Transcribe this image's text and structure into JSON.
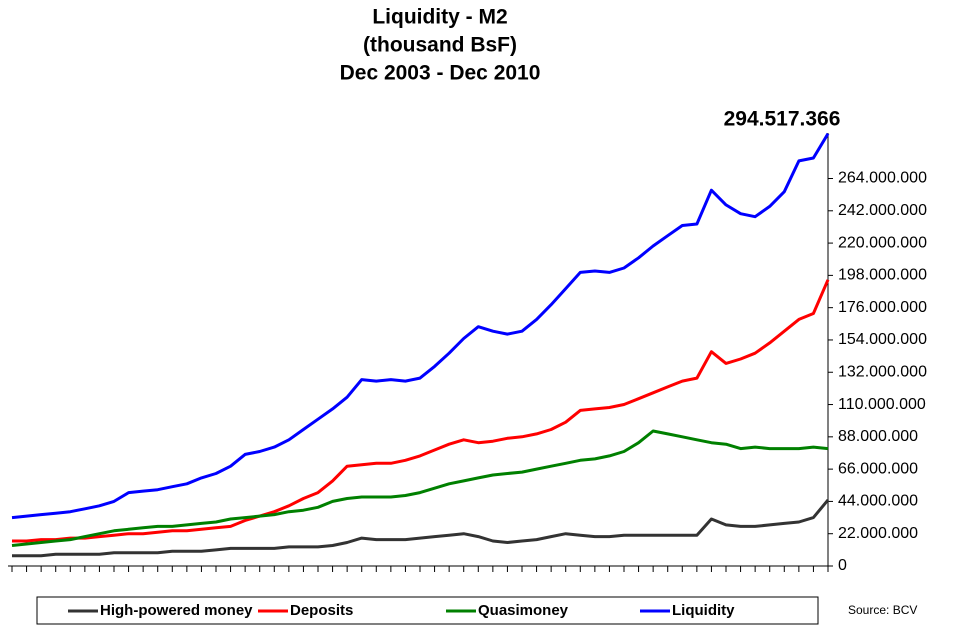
{
  "chart_data": {
    "type": "line",
    "title": [
      "Liquidity - M2",
      "(thousand BsF)",
      "Dec 2003 - Dec 2010"
    ],
    "annotation": "294.517.366",
    "source": "Source: BCV",
    "legend": "bottom",
    "categories": [
      null,
      null,
      null,
      null,
      null,
      null,
      null,
      null,
      null,
      null,
      null,
      null,
      null,
      null,
      null,
      null,
      null,
      null,
      null,
      null,
      null,
      null,
      null,
      null,
      null,
      null,
      null,
      null,
      null,
      null,
      null,
      null,
      null,
      null,
      null,
      null,
      null,
      null,
      null,
      null,
      null,
      null,
      null,
      null,
      null,
      null,
      null,
      null,
      null,
      null,
      null,
      null,
      null,
      null,
      null,
      null,
      null
    ],
    "ylim": [
      0,
      295000000
    ],
    "yticks": [
      0,
      {
        "value": 22000000,
        "label": "22.000.000"
      },
      {
        "value": 44000000,
        "label": "44.000.000"
      },
      {
        "value": 66000000,
        "label": "66.000.000"
      },
      {
        "value": 88000000,
        "label": "88.000.000"
      },
      {
        "value": 110000000,
        "label": "110.000.000"
      },
      {
        "value": 132000000,
        "label": "132.000.000"
      },
      {
        "value": 154000000,
        "label": "154.000.000"
      },
      {
        "value": 176000000,
        "label": "176.000.000"
      },
      {
        "value": 198000000,
        "label": "198.000.000"
      },
      {
        "value": 220000000,
        "label": "220.000.000"
      },
      {
        "value": 242000000,
        "label": "242.000.000"
      },
      {
        "value": 264000000,
        "label": "264.000.000"
      }
    ],
    "series": [
      {
        "name": "High-powered money",
        "color": "#333333",
        "values": [
          7000000,
          7000000,
          7000000,
          8000000,
          8000000,
          8000000,
          8000000,
          9000000,
          9000000,
          9000000,
          9000000,
          10000000,
          10000000,
          10000000,
          11000000,
          12000000,
          12000000,
          12000000,
          12000000,
          13000000,
          13000000,
          13000000,
          14000000,
          16000000,
          19000000,
          18000000,
          18000000,
          18000000,
          19000000,
          20000000,
          21000000,
          22000000,
          20000000,
          17000000,
          16000000,
          17000000,
          18000000,
          20000000,
          22000000,
          21000000,
          20000000,
          20000000,
          21000000,
          21000000,
          21000000,
          21000000,
          21000000,
          21000000,
          32000000,
          28000000,
          27000000,
          27000000,
          28000000,
          29000000,
          30000000,
          33000000,
          45000000
        ]
      },
      {
        "name": "Deposits",
        "color": "#ff0000",
        "values": [
          17000000,
          17000000,
          18000000,
          18000000,
          19000000,
          19000000,
          20000000,
          21000000,
          22000000,
          22000000,
          23000000,
          24000000,
          24000000,
          25000000,
          26000000,
          27000000,
          31000000,
          34000000,
          37000000,
          41000000,
          46000000,
          50000000,
          58000000,
          68000000,
          69000000,
          70000000,
          70000000,
          72000000,
          75000000,
          79000000,
          83000000,
          86000000,
          84000000,
          85000000,
          87000000,
          88000000,
          90000000,
          93000000,
          98000000,
          106000000,
          107000000,
          108000000,
          110000000,
          114000000,
          118000000,
          122000000,
          126000000,
          128000000,
          146000000,
          138000000,
          141000000,
          145000000,
          152000000,
          160000000,
          168000000,
          172000000,
          195000000
        ]
      },
      {
        "name": "Quasimoney",
        "color": "#008000",
        "values": [
          14000000,
          15000000,
          16000000,
          17000000,
          18000000,
          20000000,
          22000000,
          24000000,
          25000000,
          26000000,
          27000000,
          27000000,
          28000000,
          29000000,
          30000000,
          32000000,
          33000000,
          34000000,
          35000000,
          37000000,
          38000000,
          40000000,
          44000000,
          46000000,
          47000000,
          47000000,
          47000000,
          48000000,
          50000000,
          53000000,
          56000000,
          58000000,
          60000000,
          62000000,
          63000000,
          64000000,
          66000000,
          68000000,
          70000000,
          72000000,
          73000000,
          75000000,
          78000000,
          84000000,
          92000000,
          90000000,
          88000000,
          86000000,
          84000000,
          83000000,
          80000000,
          81000000,
          80000000,
          80000000,
          80000000,
          81000000,
          80000000
        ]
      },
      {
        "name": "Liquidity",
        "color": "#0000ff",
        "values": [
          33000000,
          34000000,
          35000000,
          36000000,
          37000000,
          39000000,
          41000000,
          44000000,
          50000000,
          51000000,
          52000000,
          54000000,
          56000000,
          60000000,
          63000000,
          68000000,
          76000000,
          78000000,
          81000000,
          86000000,
          93000000,
          100000000,
          107000000,
          115000000,
          127000000,
          126000000,
          127000000,
          126000000,
          128000000,
          136000000,
          145000000,
          155000000,
          163000000,
          160000000,
          158000000,
          160000000,
          168000000,
          178000000,
          189000000,
          200000000,
          201000000,
          200000000,
          203000000,
          210000000,
          218000000,
          225000000,
          232000000,
          233000000,
          256000000,
          246000000,
          240000000,
          238000000,
          245000000,
          255000000,
          276000000,
          278000000,
          294517366
        ]
      }
    ]
  }
}
